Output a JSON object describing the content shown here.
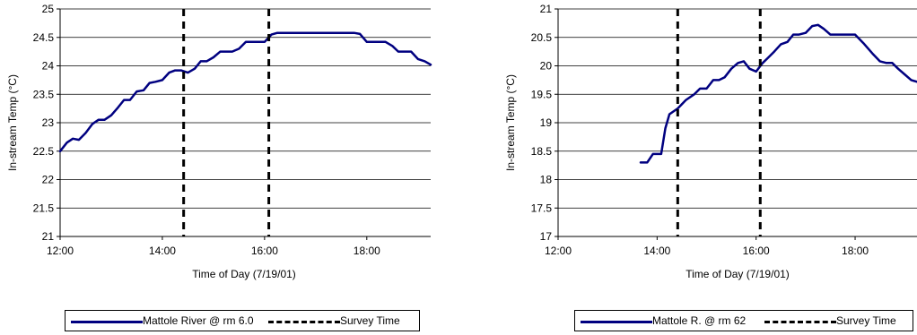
{
  "chart_data": [
    {
      "type": "line",
      "xlabel": "Time of Day (7/19/01)",
      "ylabel": "In-stream Temp (°C)",
      "xlim": [
        "12:00",
        "19:15"
      ],
      "ylim": [
        21,
        25
      ],
      "x_ticks": [
        "12:00",
        "14:00",
        "16:00",
        "18:00"
      ],
      "y_ticks": [
        "21",
        "21.5",
        "22",
        "22.5",
        "23",
        "23.5",
        "24",
        "24.5",
        "25"
      ],
      "grid": "horizontal",
      "legend_position": "bottom",
      "series": [
        {
          "name": "Mattole River @ rm 6.0",
          "color": "#000080",
          "style": "solid",
          "points": [
            [
              "12:00",
              22.5
            ],
            [
              "12:08",
              22.65
            ],
            [
              "12:15",
              22.72
            ],
            [
              "12:22",
              22.7
            ],
            [
              "12:30",
              22.82
            ],
            [
              "12:38",
              22.98
            ],
            [
              "12:45",
              23.05
            ],
            [
              "12:52",
              23.05
            ],
            [
              "13:00",
              23.13
            ],
            [
              "13:08",
              23.27
            ],
            [
              "13:15",
              23.4
            ],
            [
              "13:22",
              23.4
            ],
            [
              "13:30",
              23.55
            ],
            [
              "13:38",
              23.57
            ],
            [
              "13:45",
              23.7
            ],
            [
              "13:52",
              23.72
            ],
            [
              "14:00",
              23.75
            ],
            [
              "14:08",
              23.88
            ],
            [
              "14:15",
              23.92
            ],
            [
              "14:22",
              23.92
            ],
            [
              "14:30",
              23.88
            ],
            [
              "14:38",
              23.95
            ],
            [
              "14:45",
              24.08
            ],
            [
              "14:52",
              24.08
            ],
            [
              "15:00",
              24.15
            ],
            [
              "15:08",
              24.25
            ],
            [
              "15:15",
              24.25
            ],
            [
              "15:22",
              24.25
            ],
            [
              "15:30",
              24.3
            ],
            [
              "15:38",
              24.42
            ],
            [
              "15:45",
              24.42
            ],
            [
              "15:52",
              24.42
            ],
            [
              "16:00",
              24.42
            ],
            [
              "16:08",
              24.55
            ],
            [
              "16:15",
              24.58
            ],
            [
              "17:30",
              24.58
            ],
            [
              "17:45",
              24.58
            ],
            [
              "17:52",
              24.56
            ],
            [
              "18:00",
              24.42
            ],
            [
              "18:08",
              24.42
            ],
            [
              "18:22",
              24.42
            ],
            [
              "18:30",
              24.35
            ],
            [
              "18:37",
              24.25
            ],
            [
              "18:45",
              24.25
            ],
            [
              "18:52",
              24.25
            ],
            [
              "19:00",
              24.12
            ],
            [
              "19:08",
              24.08
            ],
            [
              "19:15",
              24.02
            ]
          ]
        },
        {
          "name": "Survey Time",
          "color": "#000000",
          "style": "dashed",
          "markers_x": [
            "14:25",
            "16:05"
          ]
        }
      ]
    },
    {
      "type": "line",
      "xlabel": "Time of Day (7/19/01)",
      "ylabel": "In-stream Temp (°C)",
      "xlim": [
        "12:00",
        "19:15"
      ],
      "ylim": [
        17,
        21
      ],
      "x_ticks": [
        "12:00",
        "14:00",
        "16:00",
        "18:00"
      ],
      "y_ticks": [
        "17",
        "17.5",
        "18",
        "18.5",
        "19",
        "19.5",
        "20",
        "20.5",
        "21"
      ],
      "grid": "horizontal",
      "legend_position": "bottom",
      "series": [
        {
          "name": "Mattole R. @ rm 62",
          "color": "#000080",
          "style": "solid",
          "points": [
            [
              "13:40",
              18.3
            ],
            [
              "13:48",
              18.3
            ],
            [
              "13:55",
              18.45
            ],
            [
              "14:00",
              18.45
            ],
            [
              "14:05",
              18.45
            ],
            [
              "14:10",
              18.9
            ],
            [
              "14:15",
              19.15
            ],
            [
              "14:25",
              19.25
            ],
            [
              "14:35",
              19.4
            ],
            [
              "14:45",
              19.5
            ],
            [
              "14:52",
              19.6
            ],
            [
              "15:00",
              19.6
            ],
            [
              "15:08",
              19.75
            ],
            [
              "15:15",
              19.75
            ],
            [
              "15:22",
              19.8
            ],
            [
              "15:30",
              19.95
            ],
            [
              "15:38",
              20.05
            ],
            [
              "15:45",
              20.08
            ],
            [
              "15:52",
              19.95
            ],
            [
              "16:00",
              19.9
            ],
            [
              "16:08",
              20.05
            ],
            [
              "16:15",
              20.15
            ],
            [
              "16:22",
              20.25
            ],
            [
              "16:30",
              20.38
            ],
            [
              "16:38",
              20.42
            ],
            [
              "16:45",
              20.55
            ],
            [
              "16:52",
              20.55
            ],
            [
              "17:00",
              20.58
            ],
            [
              "17:08",
              20.7
            ],
            [
              "17:15",
              20.72
            ],
            [
              "17:22",
              20.65
            ],
            [
              "17:30",
              20.55
            ],
            [
              "17:45",
              20.55
            ],
            [
              "17:52",
              20.55
            ],
            [
              "18:00",
              20.55
            ],
            [
              "18:10",
              20.4
            ],
            [
              "18:22",
              20.2
            ],
            [
              "18:30",
              20.08
            ],
            [
              "18:38",
              20.05
            ],
            [
              "18:45",
              20.05
            ],
            [
              "18:52",
              19.95
            ],
            [
              "19:00",
              19.85
            ],
            [
              "19:08",
              19.75
            ],
            [
              "19:15",
              19.72
            ]
          ]
        },
        {
          "name": "Survey Time",
          "color": "#000000",
          "style": "dashed",
          "markers_x": [
            "14:25",
            "16:05"
          ]
        }
      ]
    }
  ]
}
